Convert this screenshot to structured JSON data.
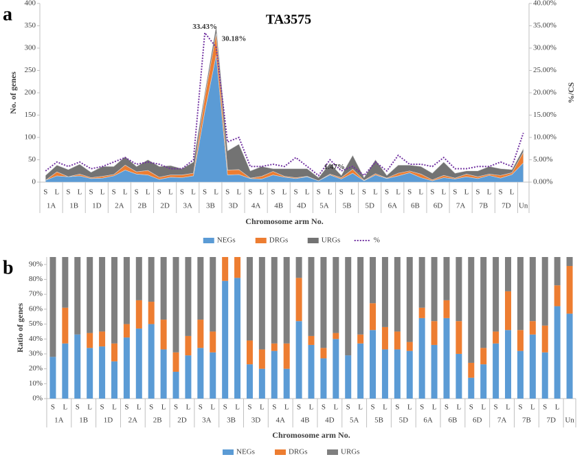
{
  "chart_data": [
    {
      "type": "area",
      "label": "a",
      "title": "TA3575",
      "xlabel": "Chromosome arm No.",
      "ylabel": "No. of genes",
      "y2label": "%/CS",
      "categories": [
        "S",
        "L",
        "S",
        "L",
        "S",
        "L",
        "S",
        "L",
        "S",
        "L",
        "S",
        "L",
        "S",
        "L",
        "S",
        "L",
        "S",
        "L",
        "S",
        "L",
        "S",
        "L",
        "S",
        "L",
        "S",
        "L",
        "S",
        "L",
        "S",
        "L",
        "S",
        "L",
        "S",
        "L",
        "S",
        "L",
        "S",
        "L",
        "S",
        "L",
        "S",
        "L",
        null
      ],
      "groups": [
        "1A",
        "1B",
        "1D",
        "2A",
        "2B",
        "2D",
        "3A",
        "3B",
        "3D",
        "4A",
        "4B",
        "4D",
        "5A",
        "5B",
        "5D",
        "6A",
        "6B",
        "6D",
        "7A",
        "7B",
        "7D",
        "Un"
      ],
      "ylim": [
        0,
        400
      ],
      "yticks": [
        0,
        50,
        100,
        150,
        200,
        250,
        300,
        350,
        400
      ],
      "y2lim": [
        0,
        40
      ],
      "y2ticks": [
        {
          "value": 0,
          "label": "0.00%"
        },
        {
          "value": 5,
          "label": "5.00%"
        },
        {
          "value": 10,
          "label": "10.00%"
        },
        {
          "value": 15,
          "label": "15.00%"
        },
        {
          "value": 20,
          "label": "20.00%"
        },
        {
          "value": 25,
          "label": "25.00%"
        },
        {
          "value": 30,
          "label": "30.00%"
        },
        {
          "value": 35,
          "label": "35.00%"
        },
        {
          "value": 40,
          "label": "40.00%"
        }
      ],
      "grid": false,
      "stacked": true,
      "legend": "bottom",
      "series": [
        {
          "name": "NEGs",
          "color": "#5b9bd5",
          "values": [
            4,
            14,
            12,
            14,
            8,
            9,
            14,
            27,
            18,
            16,
            6,
            11,
            10,
            14,
            158,
            284,
            16,
            17,
            8,
            7,
            16,
            11,
            8,
            12,
            3,
            16,
            7,
            20,
            3,
            16,
            8,
            14,
            21,
            10,
            3,
            10,
            7,
            12,
            8,
            15,
            9,
            17,
            43
          ]
        },
        {
          "name": "DRGs",
          "color": "#ed7d31",
          "values": [
            0,
            9,
            0,
            4,
            2,
            4,
            3,
            11,
            5,
            10,
            5,
            5,
            6,
            6,
            32,
            49,
            11,
            11,
            1,
            6,
            8,
            2,
            2,
            1,
            0,
            2,
            3,
            9,
            1,
            3,
            1,
            6,
            4,
            8,
            2,
            5,
            2,
            6,
            4,
            3,
            6,
            4,
            24
          ]
        },
        {
          "name": "URGs",
          "color": "#737373",
          "values": [
            11,
            15,
            16,
            22,
            12,
            22,
            18,
            19,
            12,
            24,
            24,
            21,
            14,
            25,
            10,
            17,
            43,
            57,
            16,
            22,
            6,
            17,
            20,
            17,
            7,
            24,
            5,
            31,
            6,
            31,
            6,
            18,
            13,
            17,
            15,
            30,
            11,
            7,
            13,
            17,
            15,
            7,
            8
          ]
        },
        {
          "name": "%",
          "color": "#7030a0",
          "axis": "y2",
          "line": "dotted",
          "values": [
            2.5,
            4.5,
            3.5,
            4.5,
            3,
            3.5,
            4.5,
            5.5,
            4,
            4.5,
            4,
            3,
            3,
            5,
            33.43,
            30.18,
            9,
            10,
            3.5,
            3.5,
            4,
            3.5,
            5.5,
            3.5,
            1.47,
            5,
            2.5,
            3.5,
            1.5,
            4.5,
            2.5,
            6,
            4,
            4,
            3.5,
            5.5,
            3,
            3,
            3.5,
            3.5,
            4.5,
            3.5,
            11
          ],
          "value_labels": [
            null,
            null,
            null,
            null,
            null,
            null,
            null,
            null,
            null,
            null,
            null,
            null,
            null,
            null,
            "33.43%",
            "30.18%",
            null,
            null,
            null,
            null,
            null,
            null,
            null,
            null,
            "1.47%",
            null,
            null,
            null,
            null,
            null,
            null,
            null,
            null,
            null,
            null,
            null,
            null,
            null,
            null,
            null,
            null,
            null,
            null
          ]
        }
      ]
    },
    {
      "type": "bar",
      "label": "b",
      "xlabel": "Chromosome arm No.",
      "ylabel": "Ratio of genes",
      "categories": [
        "S",
        "L",
        "S",
        "L",
        "S",
        "L",
        "S",
        "L",
        "S",
        "L",
        "S",
        "L",
        "S",
        "L",
        "S",
        "L",
        "S",
        "L",
        "S",
        "L",
        "S",
        "L",
        "S",
        "L",
        "S",
        "L",
        "S",
        "L",
        "S",
        "L",
        "S",
        "L",
        "S",
        "L",
        "S",
        "L",
        "S",
        "L",
        "S",
        "L",
        "S",
        "L",
        null
      ],
      "groups": [
        "1A",
        "1B",
        "1D",
        "2A",
        "2B",
        "2D",
        "3A",
        "3B",
        "3D",
        "4A",
        "4B",
        "4D",
        "5A",
        "5B",
        "5D",
        "6A",
        "6B",
        "6D",
        "7A",
        "7B",
        "7D",
        "Un"
      ],
      "ylim": [
        0,
        95
      ],
      "yticks": [
        {
          "value": 0,
          "label": "0%"
        },
        {
          "value": 10,
          "label": "10%"
        },
        {
          "value": 20,
          "label": "20%"
        },
        {
          "value": 30,
          "label": "30%"
        },
        {
          "value": 40,
          "label": "40%"
        },
        {
          "value": 50,
          "label": "50%"
        },
        {
          "value": 60,
          "label": "60%"
        },
        {
          "value": 70,
          "label": "70%"
        },
        {
          "value": 80,
          "label": "80%"
        },
        {
          "value": 90,
          "label": "90%"
        }
      ],
      "grid": false,
      "stacked": true,
      "legend": "bottom",
      "series": [
        {
          "name": "NEGs",
          "color": "#5b9bd5",
          "values": [
            28,
            37,
            43,
            34,
            35,
            25,
            41,
            47,
            50,
            33,
            18,
            29,
            34,
            31,
            79,
            81,
            23,
            20,
            32,
            20,
            52,
            36,
            27,
            40,
            29,
            37,
            46,
            33,
            33,
            32,
            54,
            36,
            54,
            30,
            14,
            23,
            37,
            46,
            32,
            43,
            31,
            62,
            57
          ]
        },
        {
          "name": "DRGs",
          "color": "#ed7d31",
          "values": [
            0,
            24,
            0,
            10,
            10,
            12,
            9,
            19,
            15,
            20,
            13,
            13,
            19,
            14,
            16,
            14,
            16,
            13,
            5,
            17,
            29,
            6,
            7,
            4,
            0,
            6,
            18,
            15,
            12,
            6,
            7,
            16,
            12,
            22,
            10,
            11,
            8,
            26,
            14,
            9,
            18,
            14,
            32
          ]
        },
        {
          "name": "URGs",
          "color": "#7f7f7f",
          "values": [
            72,
            39,
            57,
            56,
            55,
            63,
            50,
            34,
            35,
            47,
            69,
            58,
            47,
            55,
            5,
            5,
            61,
            67,
            63,
            63,
            19,
            58,
            66,
            56,
            71,
            57,
            36,
            52,
            55,
            62,
            39,
            48,
            34,
            48,
            76,
            66,
            55,
            28,
            54,
            48,
            51,
            24,
            11
          ]
        }
      ]
    }
  ]
}
